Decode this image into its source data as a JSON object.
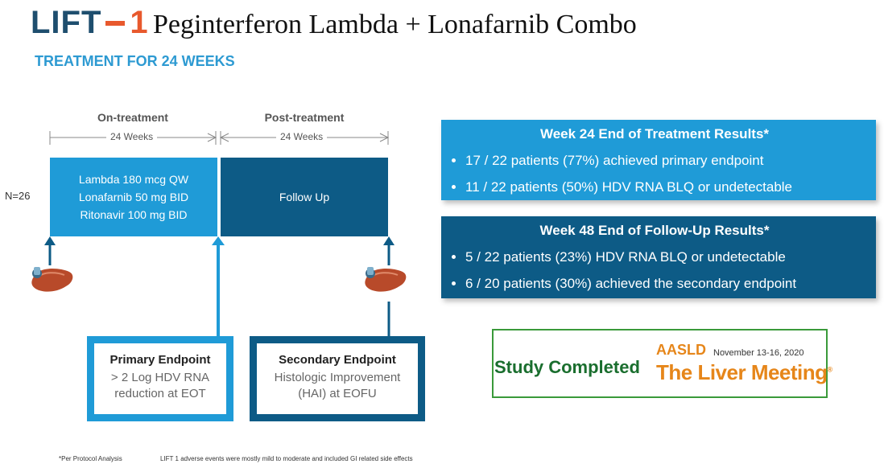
{
  "header": {
    "logo_part1": "LIFT",
    "logo_part2": "1",
    "title": "Peginterferon Lambda + Lonafarnib Combo",
    "subtitle": "TREATMENT FOR 24 WEEKS"
  },
  "timeline": {
    "on_treatment_label": "On-treatment",
    "on_treatment_weeks": "24 Weeks",
    "post_treatment_label": "Post-treatment",
    "post_treatment_weeks": "24 Weeks",
    "n_label": "N=26",
    "regimen": [
      "Lambda 180 mcg QW",
      "Lonafarnib 50 mg BID",
      "Ritonavir 100 mg BID"
    ],
    "follow_up": "Follow Up"
  },
  "primary_endpoint": {
    "title": "Primary Endpoint",
    "lines": [
      "> 2 Log HDV RNA",
      "reduction at EOT"
    ]
  },
  "secondary_endpoint": {
    "title": "Secondary Endpoint",
    "lines": [
      "Histologic Improvement",
      "(HAI) at EOFU"
    ]
  },
  "results": {
    "week24": {
      "title": "Week 24 End of Treatment Results*",
      "items": [
        "17 / 22 patients (77%) achieved primary endpoint",
        "11 / 22 patients (50%) HDV RNA BLQ or undetectable"
      ]
    },
    "week48": {
      "title": "Week 48 End of Follow-Up Results*",
      "items": [
        "5 / 22 patients (23%) HDV RNA BLQ or undetectable",
        "6 / 20 patients (30%) achieved the secondary endpoint"
      ]
    }
  },
  "study": {
    "completed": "Study Completed",
    "aasld": "AASLD",
    "date": "November 13-16, 2020",
    "meeting": "The Liver Meeting",
    "registered": "®"
  },
  "footnotes": {
    "protocol": "*Per Protocol Analysis",
    "adverse": "LIFT 1 adverse events were mostly mild to moderate and included GI related side effects"
  },
  "colors": {
    "light_blue": "#1f9bd7",
    "dark_blue": "#0d5b86",
    "accent_orange": "#e8592d",
    "study_green": "#1a6e2e"
  }
}
